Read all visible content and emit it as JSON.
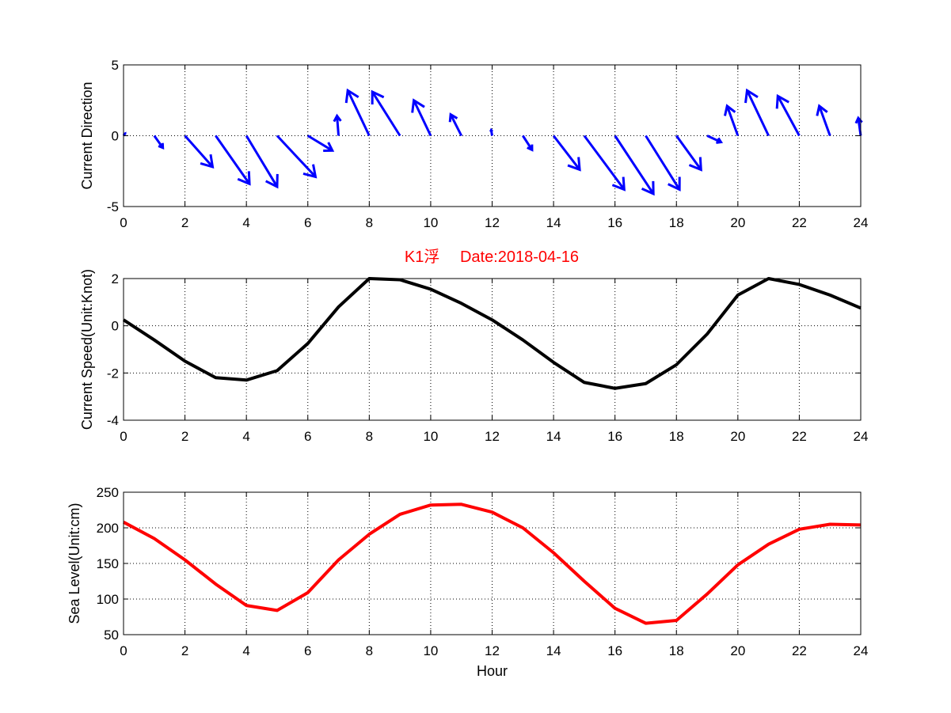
{
  "figure_title": "K1浮　 Date:2018-04-16",
  "chart_data": [
    {
      "type": "quiver",
      "ylabel": "Current Direction",
      "xlabel": "",
      "xlim": [
        0,
        24
      ],
      "ylim": [
        -5,
        5
      ],
      "xticks": [
        0,
        2,
        4,
        6,
        8,
        10,
        12,
        14,
        16,
        18,
        20,
        22,
        24
      ],
      "yticks": [
        -5,
        0,
        5
      ],
      "grid": true,
      "color": "#0000ff",
      "x": [
        0,
        1,
        2,
        3,
        4,
        5,
        6,
        7,
        8,
        9,
        10,
        11,
        12,
        13,
        14,
        15,
        16,
        17,
        18,
        19,
        20,
        21,
        22,
        23,
        24
      ],
      "u": [
        0.05,
        0.28,
        0.9,
        1.1,
        1.0,
        1.25,
        0.8,
        -0.05,
        -0.7,
        -0.9,
        -0.55,
        -0.35,
        -0.03,
        0.3,
        0.85,
        1.3,
        1.25,
        1.1,
        0.8,
        0.45,
        -0.35,
        -0.7,
        -0.7,
        -0.35,
        -0.08
      ],
      "v": [
        0.15,
        -0.85,
        -2.2,
        -3.4,
        -3.6,
        -2.9,
        -1.05,
        1.4,
        3.2,
        3.1,
        2.5,
        1.5,
        0.4,
        -1.0,
        -2.4,
        -3.8,
        -4.1,
        -3.8,
        -2.4,
        -0.45,
        2.1,
        3.2,
        2.8,
        2.1,
        1.25
      ]
    },
    {
      "type": "line",
      "ylabel": "Current Speed(Unit:Knot)",
      "xlabel": "",
      "xlim": [
        0,
        24
      ],
      "ylim": [
        -4,
        2
      ],
      "xticks": [
        0,
        2,
        4,
        6,
        8,
        10,
        12,
        14,
        16,
        18,
        20,
        22,
        24
      ],
      "yticks": [
        -4,
        -2,
        0,
        2
      ],
      "grid": true,
      "color": "#000000",
      "x": [
        0,
        1,
        2,
        3,
        4,
        5,
        6,
        7,
        8,
        9,
        10,
        11,
        12,
        13,
        14,
        15,
        16,
        17,
        18,
        19,
        20,
        21,
        22,
        23,
        24
      ],
      "y": [
        0.25,
        -0.6,
        -1.5,
        -2.2,
        -2.3,
        -1.9,
        -0.75,
        0.8,
        2.0,
        1.95,
        1.55,
        0.95,
        0.25,
        -0.6,
        -1.55,
        -2.4,
        -2.65,
        -2.45,
        -1.65,
        -0.35,
        1.3,
        2.0,
        1.75,
        1.3,
        0.75
      ]
    },
    {
      "type": "line",
      "ylabel": "Sea Level(Unit:cm)",
      "xlabel": "Hour",
      "xlim": [
        0,
        24
      ],
      "ylim": [
        50,
        250
      ],
      "xticks": [
        0,
        2,
        4,
        6,
        8,
        10,
        12,
        14,
        16,
        18,
        20,
        22,
        24
      ],
      "yticks": [
        50,
        100,
        150,
        200,
        250
      ],
      "grid": true,
      "color": "#ff0000",
      "x": [
        0,
        1,
        2,
        3,
        4,
        5,
        6,
        7,
        8,
        9,
        10,
        11,
        12,
        13,
        14,
        15,
        16,
        17,
        18,
        19,
        20,
        21,
        22,
        23,
        24
      ],
      "y": [
        208,
        185,
        155,
        121,
        91,
        84,
        109,
        155,
        191,
        219,
        232,
        233,
        222,
        200,
        165,
        125,
        87,
        66,
        70,
        107,
        148,
        177,
        198,
        205,
        204
      ]
    }
  ]
}
